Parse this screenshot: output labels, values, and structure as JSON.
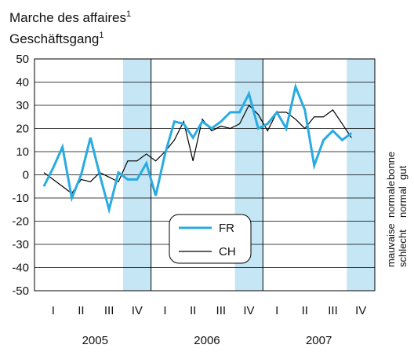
{
  "chart_data": {
    "type": "line",
    "title": [
      "Marche des affaires",
      "Geschäftsgang"
    ],
    "title_note": "1",
    "x": [
      1,
      2,
      3,
      4,
      5,
      6,
      7,
      8,
      9,
      10,
      11,
      12,
      13,
      14,
      15,
      16,
      17,
      18,
      19,
      20,
      21,
      22,
      23,
      24,
      25,
      26,
      27,
      28,
      29,
      30,
      31,
      32,
      33,
      34
    ],
    "xlim": [
      0,
      36.5
    ],
    "quarter_labels": [
      "I",
      "II",
      "III",
      "IV",
      "I",
      "II",
      "III",
      "IV",
      "I",
      "II",
      "III",
      "IV"
    ],
    "years": [
      "2005",
      "2006",
      "2007"
    ],
    "series": [
      {
        "name": "FR",
        "color": "#29abe2",
        "values": [
          -5,
          3,
          12,
          -10,
          0,
          16,
          0,
          -15,
          1,
          -2,
          -2,
          5,
          -9,
          9,
          23,
          22,
          16,
          23,
          20,
          23,
          27,
          27,
          35,
          20,
          22,
          27,
          20,
          38,
          28,
          4,
          15,
          19,
          15,
          18
        ]
      },
      {
        "name": "CH",
        "color": "#000000",
        "values": [
          1,
          -2,
          -5,
          -8,
          -2,
          -3,
          1,
          -1,
          -3,
          6,
          6,
          9,
          6,
          10,
          15,
          23,
          6,
          24,
          19,
          21,
          20,
          22,
          30,
          26,
          19,
          27,
          27,
          24,
          20,
          25,
          25,
          28,
          22,
          16
        ]
      }
    ],
    "ylim": [
      -50,
      50
    ],
    "yticks": [
      -50,
      -40,
      -30,
      -20,
      -10,
      0,
      10,
      20,
      30,
      40,
      50
    ],
    "grid": true,
    "right_labels": [
      [
        "mauvaise",
        "normale",
        "bonne"
      ],
      [
        "schlecht",
        "normal",
        "gut"
      ]
    ]
  }
}
